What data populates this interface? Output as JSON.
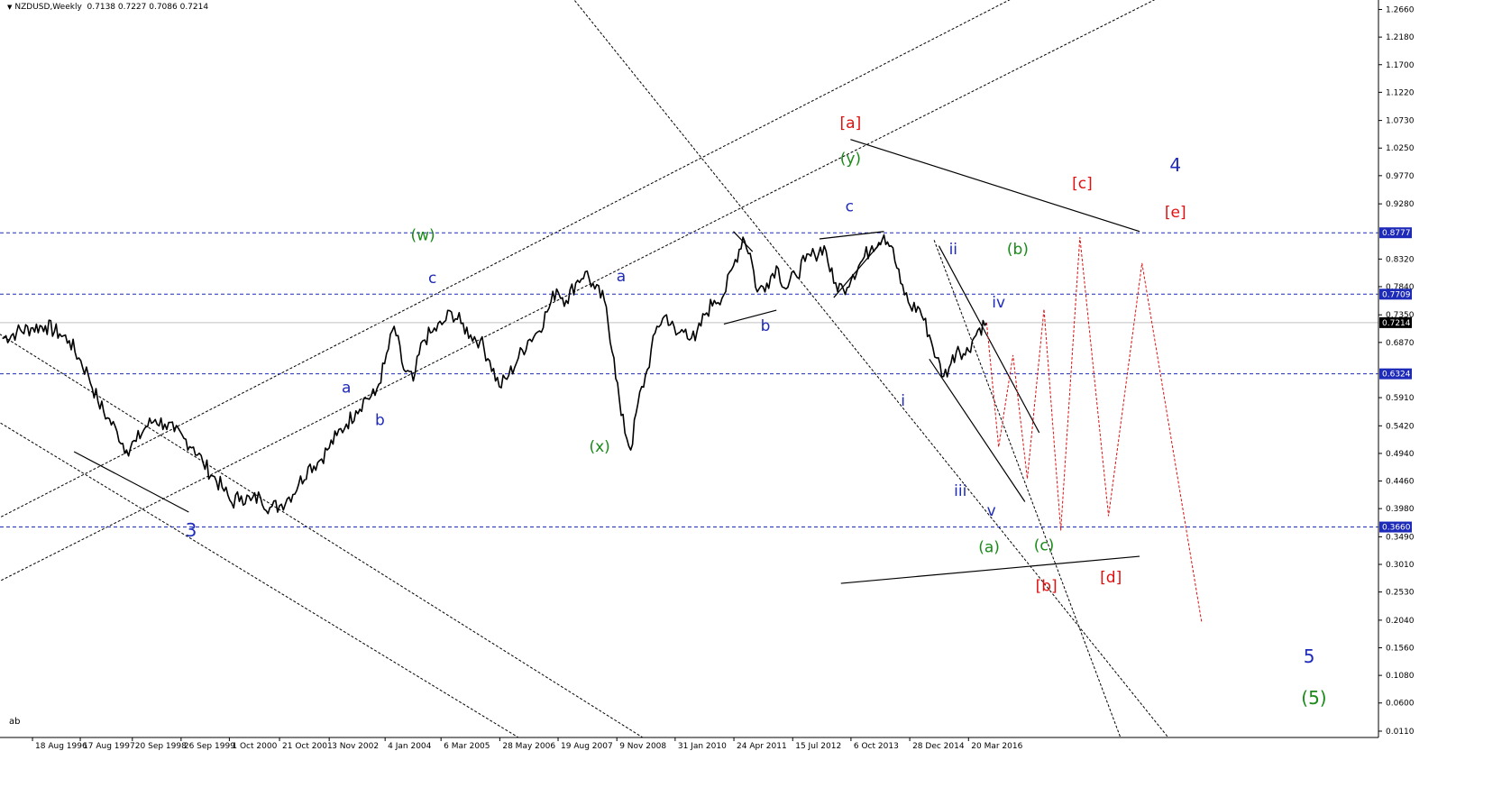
{
  "header": {
    "symbol": "NZDUSD,Weekly",
    "ohlc": "0.7138 0.7227 0.7086 0.7214"
  },
  "corner_text": "ab",
  "colors": {
    "price": "#000000",
    "level_line": "#1e2bb8",
    "forecast": "#e01010",
    "label_blue": "#1e2bb8",
    "label_green": "#1a8a1a",
    "label_red": "#e01010",
    "trend_dashed": "#000000",
    "current_price_line": "#c0c0c0"
  },
  "chart_data": {
    "type": "line",
    "title": "",
    "xlabel": "",
    "ylabel": "",
    "ylim": [
      0.0,
      1.2825
    ],
    "grid": false,
    "y_ticks": [
      "1.2660",
      "1.2180",
      "1.1700",
      "1.1220",
      "1.0730",
      "1.0250",
      "0.9770",
      "0.9280",
      "0.8320",
      "0.7840",
      "0.7350",
      "0.6870",
      "0.5910",
      "0.5420",
      "0.4940",
      "0.4460",
      "0.3980",
      "0.3490",
      "0.3010",
      "0.2530",
      "0.2040",
      "0.1560",
      "0.1080",
      "0.0600",
      "0.0110"
    ],
    "x_ticks": [
      {
        "label": "18 Aug 1996",
        "t": 1996.63
      },
      {
        "label": "17 Aug 1997",
        "t": 1997.63
      },
      {
        "label": "20 Sep 1998",
        "t": 1998.72
      },
      {
        "label": "26 Sep 1999",
        "t": 1999.74
      },
      {
        "label": "1 Oct 2000",
        "t": 2000.75
      },
      {
        "label": "21 Oct 2001",
        "t": 2001.8
      },
      {
        "label": "3 Nov 2002",
        "t": 2002.84
      },
      {
        "label": "4 Jan 2004",
        "t": 2004.01
      },
      {
        "label": "6 Mar 2005",
        "t": 2005.18
      },
      {
        "label": "28 May 2006",
        "t": 2006.41
      },
      {
        "label": "19 Aug 2007",
        "t": 2007.63
      },
      {
        "label": "9 Nov 2008",
        "t": 2008.86
      },
      {
        "label": "31 Jan 2010",
        "t": 2010.08
      },
      {
        "label": "24 Apr 2011",
        "t": 2011.31
      },
      {
        "label": "15 Jul 2012",
        "t": 2012.54
      },
      {
        "label": "6 Oct 2013",
        "t": 2013.76
      },
      {
        "label": "28 Dec 2014",
        "t": 2014.99
      },
      {
        "label": "20 Mar 2016",
        "t": 2016.22
      }
    ],
    "price": [
      [
        1996.0,
        0.694
      ],
      [
        1996.3,
        0.705
      ],
      [
        1996.6,
        0.712
      ],
      [
        1996.9,
        0.716
      ],
      [
        1997.2,
        0.702
      ],
      [
        1997.4,
        0.69
      ],
      [
        1997.6,
        0.66
      ],
      [
        1997.8,
        0.63
      ],
      [
        1998.0,
        0.585
      ],
      [
        1998.2,
        0.556
      ],
      [
        1998.4,
        0.532
      ],
      [
        1998.6,
        0.5
      ],
      [
        1998.8,
        0.515
      ],
      [
        1999.0,
        0.54
      ],
      [
        1999.2,
        0.553
      ],
      [
        1999.4,
        0.545
      ],
      [
        1999.6,
        0.532
      ],
      [
        1999.8,
        0.52
      ],
      [
        2000.0,
        0.505
      ],
      [
        2000.2,
        0.478
      ],
      [
        2000.4,
        0.455
      ],
      [
        2000.6,
        0.435
      ],
      [
        2000.8,
        0.408
      ],
      [
        2001.0,
        0.42
      ],
      [
        2001.2,
        0.412
      ],
      [
        2001.4,
        0.418
      ],
      [
        2001.6,
        0.4
      ],
      [
        2001.8,
        0.403
      ],
      [
        2002.0,
        0.418
      ],
      [
        2002.2,
        0.44
      ],
      [
        2002.4,
        0.47
      ],
      [
        2002.6,
        0.478
      ],
      [
        2002.8,
        0.5
      ],
      [
        2003.0,
        0.525
      ],
      [
        2003.2,
        0.545
      ],
      [
        2003.4,
        0.568
      ],
      [
        2003.6,
        0.59
      ],
      [
        2003.8,
        0.595
      ],
      [
        2004.0,
        0.65
      ],
      [
        2004.2,
        0.715
      ],
      [
        2004.4,
        0.64
      ],
      [
        2004.6,
        0.62
      ],
      [
        2004.8,
        0.69
      ],
      [
        2005.0,
        0.705
      ],
      [
        2005.2,
        0.718
      ],
      [
        2005.4,
        0.74
      ],
      [
        2005.6,
        0.72
      ],
      [
        2005.8,
        0.7
      ],
      [
        2006.0,
        0.69
      ],
      [
        2006.2,
        0.655
      ],
      [
        2006.4,
        0.61
      ],
      [
        2006.6,
        0.63
      ],
      [
        2006.8,
        0.66
      ],
      [
        2007.0,
        0.69
      ],
      [
        2007.2,
        0.705
      ],
      [
        2007.4,
        0.74
      ],
      [
        2007.6,
        0.78
      ],
      [
        2007.8,
        0.76
      ],
      [
        2008.0,
        0.79
      ],
      [
        2008.2,
        0.81
      ],
      [
        2008.4,
        0.78
      ],
      [
        2008.6,
        0.76
      ],
      [
        2008.8,
        0.66
      ],
      [
        2008.95,
        0.56
      ],
      [
        2009.15,
        0.5
      ],
      [
        2009.3,
        0.58
      ],
      [
        2009.5,
        0.64
      ],
      [
        2009.7,
        0.715
      ],
      [
        2009.9,
        0.735
      ],
      [
        2010.1,
        0.7
      ],
      [
        2010.3,
        0.71
      ],
      [
        2010.5,
        0.69
      ],
      [
        2010.7,
        0.735
      ],
      [
        2010.9,
        0.76
      ],
      [
        2011.1,
        0.77
      ],
      [
        2011.3,
        0.82
      ],
      [
        2011.5,
        0.87
      ],
      [
        2011.65,
        0.842
      ],
      [
        2011.8,
        0.775
      ],
      [
        2012.0,
        0.79
      ],
      [
        2012.2,
        0.82
      ],
      [
        2012.4,
        0.78
      ],
      [
        2012.6,
        0.805
      ],
      [
        2012.8,
        0.828
      ],
      [
        2013.0,
        0.84
      ],
      [
        2013.2,
        0.855
      ],
      [
        2013.4,
        0.79
      ],
      [
        2013.6,
        0.78
      ],
      [
        2013.8,
        0.805
      ],
      [
        2014.0,
        0.83
      ],
      [
        2014.2,
        0.855
      ],
      [
        2014.45,
        0.874
      ],
      [
        2014.6,
        0.855
      ],
      [
        2014.8,
        0.79
      ],
      [
        2015.0,
        0.75
      ],
      [
        2015.2,
        0.745
      ],
      [
        2015.4,
        0.7
      ],
      [
        2015.55,
        0.66
      ],
      [
        2015.7,
        0.628
      ],
      [
        2015.85,
        0.65
      ],
      [
        2016.0,
        0.68
      ],
      [
        2016.15,
        0.665
      ],
      [
        2016.3,
        0.69
      ],
      [
        2016.45,
        0.712
      ],
      [
        2016.6,
        0.721
      ]
    ],
    "levels": [
      {
        "label": "0.8777",
        "value": 0.8777
      },
      {
        "label": "0.7709",
        "value": 0.7709
      },
      {
        "label": "0.6324",
        "value": 0.6324
      },
      {
        "label": "0.3660",
        "value": 0.366
      }
    ],
    "current_price": {
      "label": "0.7214",
      "value": 0.7214
    },
    "forecast_paths": [
      [
        [
          2016.6,
          0.721
        ],
        [
          2016.85,
          0.505
        ],
        [
          2017.15,
          0.665
        ],
        [
          2017.45,
          0.45
        ],
        [
          2017.8,
          0.745
        ],
        [
          2018.15,
          0.36
        ],
        [
          2018.55,
          0.87
        ],
        [
          2019.15,
          0.385
        ],
        [
          2019.85,
          0.825
        ],
        [
          2021.1,
          0.2
        ]
      ]
    ],
    "trendlines_solid": [
      [
        [
          1997.5,
          0.497
        ],
        [
          1999.9,
          0.392
        ]
      ],
      [
        [
          2011.1,
          0.719
        ],
        [
          2012.2,
          0.743
        ]
      ],
      [
        [
          2011.3,
          0.88
        ],
        [
          2011.7,
          0.845
        ]
      ],
      [
        [
          2013.1,
          0.867
        ],
        [
          2014.45,
          0.88
        ]
      ],
      [
        [
          2013.4,
          0.765
        ],
        [
          2014.4,
          0.862
        ]
      ],
      [
        [
          2013.75,
          1.04
        ],
        [
          2019.8,
          0.88
        ]
      ],
      [
        [
          2013.55,
          0.268
        ],
        [
          2019.8,
          0.315
        ]
      ],
      [
        [
          2015.6,
          0.855
        ],
        [
          2017.7,
          0.53
        ]
      ],
      [
        [
          2015.4,
          0.658
        ],
        [
          2017.4,
          0.41
        ]
      ]
    ],
    "trendlines_dashed": [
      [
        [
          1995.3,
          0.355
        ],
        [
          2017.6,
          1.305
        ]
      ],
      [
        [
          1995.3,
          0.245
        ],
        [
          2021.0,
          1.32
        ]
      ],
      [
        [
          1995.3,
          0.735
        ],
        [
          2009.4,
          0.0
        ]
      ],
      [
        [
          1995.8,
          0.555
        ],
        [
          2006.8,
          0.0
        ]
      ],
      [
        [
          2007.8,
          1.3
        ],
        [
          2020.4,
          0.0
        ]
      ],
      [
        [
          2015.5,
          0.865
        ],
        [
          2019.4,
          0.0
        ]
      ]
    ],
    "annotations": [
      {
        "text": "3",
        "t": 1999.95,
        "v": 0.35,
        "color": "blue",
        "size": "big"
      },
      {
        "text": "(w)",
        "t": 2004.8,
        "v": 0.865,
        "color": "green",
        "size": "normal"
      },
      {
        "text": "c",
        "t": 2005.0,
        "v": 0.79,
        "color": "blue",
        "size": "normal"
      },
      {
        "text": "a",
        "t": 2003.2,
        "v": 0.6,
        "color": "blue",
        "size": "normal"
      },
      {
        "text": "b",
        "t": 2003.9,
        "v": 0.543,
        "color": "blue",
        "size": "normal"
      },
      {
        "text": "(x)",
        "t": 2008.5,
        "v": 0.497,
        "color": "green",
        "size": "normal"
      },
      {
        "text": "a",
        "t": 2008.95,
        "v": 0.793,
        "color": "blue",
        "size": "normal"
      },
      {
        "text": "b",
        "t": 2011.97,
        "v": 0.707,
        "color": "blue",
        "size": "normal"
      },
      {
        "text": "[a]",
        "t": 2013.75,
        "v": 1.06,
        "color": "red",
        "size": "normal"
      },
      {
        "text": "(y)",
        "t": 2013.75,
        "v": 0.998,
        "color": "green",
        "size": "normal"
      },
      {
        "text": "c",
        "t": 2013.73,
        "v": 0.915,
        "color": "blue",
        "size": "normal"
      },
      {
        "text": "ii",
        "t": 2015.9,
        "v": 0.84,
        "color": "blue",
        "size": "normal"
      },
      {
        "text": "(b)",
        "t": 2017.25,
        "v": 0.84,
        "color": "green",
        "size": "normal"
      },
      {
        "text": "iv",
        "t": 2016.85,
        "v": 0.748,
        "color": "blue",
        "size": "normal"
      },
      {
        "text": "i",
        "t": 2014.85,
        "v": 0.577,
        "color": "blue",
        "size": "normal"
      },
      {
        "text": "iii",
        "t": 2016.05,
        "v": 0.42,
        "color": "blue",
        "size": "normal"
      },
      {
        "text": "v",
        "t": 2016.7,
        "v": 0.386,
        "color": "blue",
        "size": "normal"
      },
      {
        "text": "(a)",
        "t": 2016.65,
        "v": 0.322,
        "color": "green",
        "size": "normal"
      },
      {
        "text": "(c)",
        "t": 2017.8,
        "v": 0.325,
        "color": "green",
        "size": "normal"
      },
      {
        "text": "[b]",
        "t": 2017.85,
        "v": 0.255,
        "color": "red",
        "size": "normal"
      },
      {
        "text": "[d]",
        "t": 2019.2,
        "v": 0.27,
        "color": "red",
        "size": "normal"
      },
      {
        "text": "[c]",
        "t": 2018.6,
        "v": 0.955,
        "color": "red",
        "size": "normal"
      },
      {
        "text": "4",
        "t": 2020.55,
        "v": 0.985,
        "color": "blue",
        "size": "big"
      },
      {
        "text": "[e]",
        "t": 2020.55,
        "v": 0.905,
        "color": "red",
        "size": "normal"
      },
      {
        "text": "5",
        "t": 2023.35,
        "v": 0.13,
        "color": "blue",
        "size": "big"
      },
      {
        "text": "(5)",
        "t": 2023.45,
        "v": 0.058,
        "color": "green",
        "size": "big"
      }
    ]
  }
}
